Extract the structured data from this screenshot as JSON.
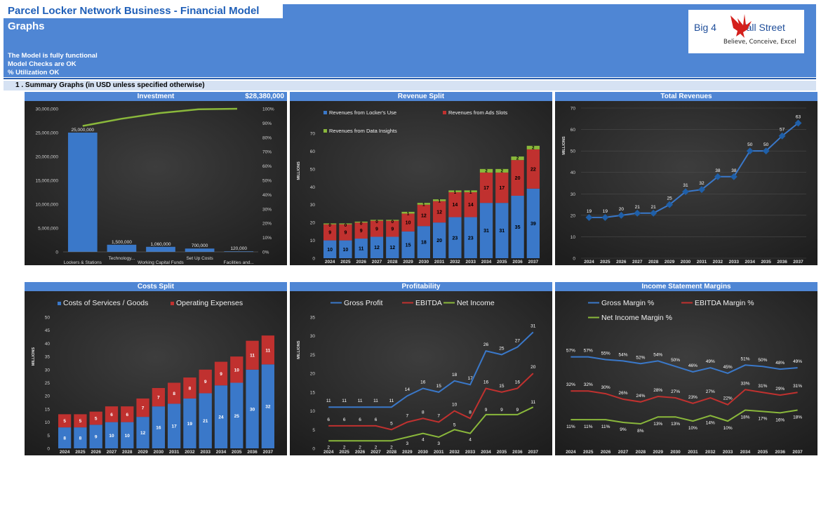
{
  "header": {
    "title": "Parcel Locker Network Business - Financial Model",
    "subtitle": "Graphs",
    "checks": [
      "The Model is fully functional",
      "Model Checks are OK",
      "% Utilization OK"
    ]
  },
  "logo": {
    "text_left": "Big 4",
    "text_right": "Wall Street",
    "tagline": "Believe, Conceive, Excel"
  },
  "section": {
    "title": "1 .  Summary Graphs (in USD unless specified otherwise)"
  },
  "colors": {
    "blue": "#3a78c9",
    "red": "#c0312f",
    "green": "#8ab83b",
    "panel_bg": "#2e2e2e",
    "header_blue": "#4f86d4"
  },
  "chart_data": [
    {
      "id": "investment",
      "title": "Investment",
      "total_label": "$28,380,000",
      "type": "bar",
      "categories": [
        "Lockers & Stations",
        "Technology...",
        "Working Capital Funds",
        "Set Up Costs",
        "Facilities and..."
      ],
      "values": [
        25000000,
        1500000,
        1060000,
        700000,
        120000
      ],
      "value_labels": [
        "25,000,000",
        "1,500,000",
        "1,060,000",
        "700,000",
        "120,000"
      ],
      "cumulative_pct": [
        88,
        93,
        97,
        99.6,
        100
      ],
      "ylim": [
        0,
        30000000
      ],
      "y_ticks": [
        "0",
        "5,000,000",
        "10,000,000",
        "15,000,000",
        "20,000,000",
        "25,000,000",
        "30,000,000"
      ],
      "y2_ticks": [
        "0%",
        "10%",
        "20%",
        "30%",
        "40%",
        "50%",
        "60%",
        "70%",
        "80%",
        "90%",
        "100%"
      ]
    },
    {
      "id": "revenue-split",
      "title": "Revenue Split",
      "type": "bar",
      "stacked": true,
      "ylabel": "MILLIONS",
      "ylim": [
        0,
        70
      ],
      "y_ticks": [
        "0",
        "10",
        "20",
        "30",
        "40",
        "50",
        "60",
        "70"
      ],
      "categories": [
        "2024",
        "2025",
        "2026",
        "2027",
        "2028",
        "2029",
        "2030",
        "2031",
        "2032",
        "2033",
        "2034",
        "2035",
        "2036",
        "2037"
      ],
      "series": [
        {
          "name": "Revenues from Locker's Use",
          "values": [
            10,
            10,
            11,
            12,
            12,
            15,
            18,
            20,
            23,
            23,
            31,
            31,
            35,
            39
          ]
        },
        {
          "name": "Revenues from Ads Slots",
          "values": [
            9,
            9,
            9,
            9,
            9,
            10,
            12,
            12,
            14,
            14,
            17,
            17,
            20,
            22
          ]
        },
        {
          "name": "Revenues from Data Insights",
          "values": [
            0,
            0,
            0,
            0,
            0,
            1,
            1,
            1,
            1,
            1,
            2,
            2,
            2,
            2
          ]
        }
      ],
      "legend": "top"
    },
    {
      "id": "total-revenues",
      "title": "Total Revenues",
      "type": "line",
      "ylabel": "MILLIONS",
      "ylim": [
        0,
        70
      ],
      "y_ticks": [
        "0",
        "10",
        "20",
        "30",
        "40",
        "50",
        "60",
        "70"
      ],
      "categories": [
        "2024",
        "2025",
        "2026",
        "2027",
        "2028",
        "2029",
        "2030",
        "2031",
        "2032",
        "2033",
        "2034",
        "2035",
        "2036",
        "2037"
      ],
      "values": [
        19,
        19,
        20,
        21,
        21,
        25,
        31,
        32,
        38,
        38,
        50,
        50,
        57,
        63
      ]
    },
    {
      "id": "costs-split",
      "title": "Costs Split",
      "type": "bar",
      "stacked": true,
      "ylabel": "MILLIONS",
      "ylim": [
        0,
        50
      ],
      "y_ticks": [
        "0",
        "5",
        "10",
        "15",
        "20",
        "25",
        "30",
        "35",
        "40",
        "45",
        "50"
      ],
      "categories": [
        "2024",
        "2025",
        "2026",
        "2027",
        "2028",
        "2029",
        "2030",
        "2031",
        "2032",
        "2033",
        "2034",
        "2035",
        "2036",
        "2037"
      ],
      "series": [
        {
          "name": "Costs of Services / Goods",
          "values": [
            8,
            8,
            9,
            10,
            10,
            12,
            16,
            17,
            19,
            21,
            24,
            25,
            30,
            32
          ]
        },
        {
          "name": "Operating Expenses",
          "values": [
            5,
            5,
            5,
            6,
            6,
            7,
            7,
            8,
            8,
            9,
            9,
            10,
            11,
            11
          ]
        }
      ],
      "legend": "top"
    },
    {
      "id": "profitability",
      "title": "Profitability",
      "type": "line",
      "ylabel": "MILLIONS",
      "ylim": [
        0,
        35
      ],
      "y_ticks": [
        "0",
        "5",
        "10",
        "15",
        "20",
        "25",
        "30",
        "35"
      ],
      "categories": [
        "2024",
        "2025",
        "2026",
        "2027",
        "2028",
        "2029",
        "2030",
        "2031",
        "2032",
        "2033",
        "2034",
        "2035",
        "2036",
        "2037"
      ],
      "series": [
        {
          "name": "Gross Profit",
          "values": [
            11,
            11,
            11,
            11,
            11,
            14,
            16,
            15,
            18,
            17,
            26,
            25,
            27,
            31
          ]
        },
        {
          "name": "EBITDA",
          "values": [
            6,
            6,
            6,
            6,
            5,
            7,
            8,
            7,
            10,
            8,
            16,
            15,
            16,
            20
          ]
        },
        {
          "name": "Net Income",
          "values": [
            2,
            2,
            2,
            2,
            2,
            3,
            4,
            3,
            5,
            4,
            9,
            9,
            9,
            11
          ]
        }
      ],
      "legend": "top"
    },
    {
      "id": "margins",
      "title": "Income Statement Margins",
      "type": "line",
      "categories": [
        "2024",
        "2025",
        "2026",
        "2027",
        "2028",
        "2029",
        "2030",
        "2031",
        "2032",
        "2033",
        "2034",
        "2035",
        "2036",
        "2037"
      ],
      "series": [
        {
          "name": "Gross Margin %",
          "values": [
            57,
            57,
            55,
            54,
            52,
            54,
            50,
            46,
            49,
            45,
            51,
            50,
            48,
            49
          ]
        },
        {
          "name": "EBITDA Margin %",
          "values": [
            32,
            32,
            30,
            26,
            24,
            28,
            27,
            23,
            27,
            22,
            33,
            31,
            29,
            31
          ]
        },
        {
          "name": "Net Income Margin %",
          "values": [
            11,
            11,
            11,
            9,
            8,
            13,
            13,
            10,
            14,
            10,
            18,
            17,
            16,
            18
          ]
        }
      ],
      "legend": "top"
    }
  ]
}
